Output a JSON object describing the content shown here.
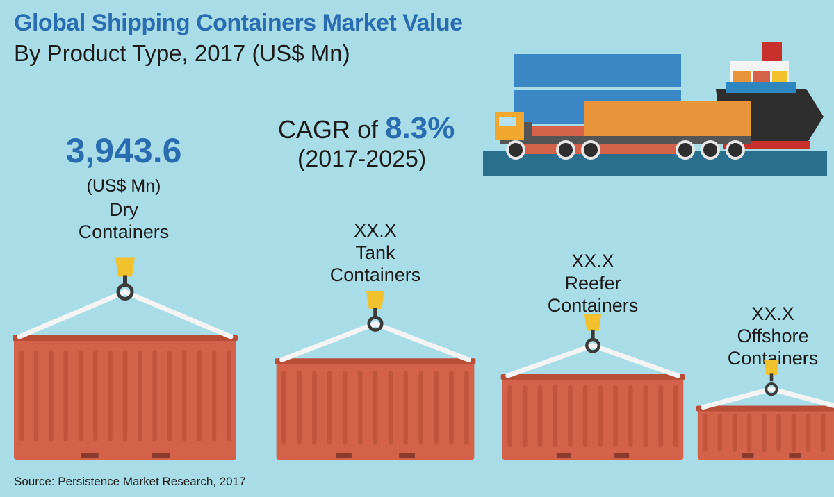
{
  "title": "Global Shipping Containers Market Value",
  "subtitle": "By Product Type, 2017 (US$ Mn)",
  "cagr": {
    "prefix": "CAGR of",
    "value": "8.3%",
    "years": "(2017-2025)"
  },
  "source": "Source: Persistence Market Research, 2017",
  "colors": {
    "background": "#a8dde8",
    "title_blue": "#2b6cb0",
    "container_red": "#d4624a",
    "hook_yellow": "#f2c12e"
  },
  "chart_data": {
    "type": "bar",
    "categories": [
      "Dry Containers",
      "Tank Containers",
      "Reefer Containers",
      "Offshore Containers"
    ],
    "label_lines": [
      [
        "Dry",
        "Containers"
      ],
      [
        "Tank",
        "Containers"
      ],
      [
        "Reefer",
        "Containers"
      ],
      [
        "Offshore",
        "Containers"
      ]
    ],
    "value_labels": [
      "3,943.6",
      "XX.X",
      "XX.X",
      "XX.X"
    ],
    "unit_label": "(US$ Mn)",
    "values": [
      3943.6,
      null,
      null,
      null
    ],
    "relative_size": [
      1.0,
      0.81,
      0.68,
      0.42
    ]
  }
}
